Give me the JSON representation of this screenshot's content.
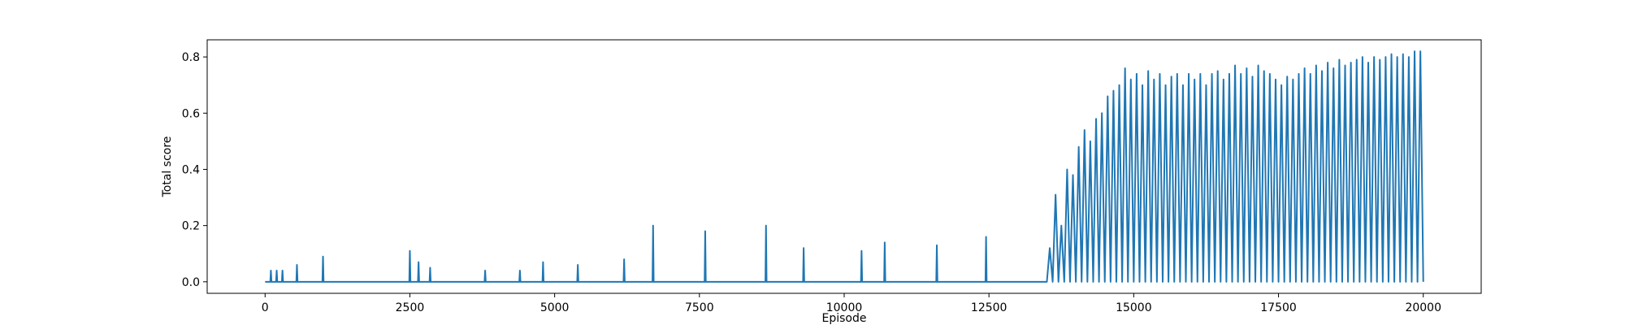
{
  "chart_data": {
    "type": "line",
    "xlabel": "Episode",
    "ylabel": "Total score",
    "xlim": [
      -1000,
      21000
    ],
    "ylim": [
      -0.041,
      0.861
    ],
    "xticks": [
      0,
      2500,
      5000,
      7500,
      10000,
      12500,
      15000,
      17500,
      20000
    ],
    "yticks": [
      {
        "value": 0,
        "label": "0.0"
      },
      0.2,
      0.4,
      0.6,
      0.8
    ],
    "grid": false,
    "series": [
      {
        "color": "#1f77b4",
        "x": [
          0,
          90,
          100,
          110,
          190,
          200,
          210,
          290,
          300,
          310,
          540,
          550,
          560,
          990,
          1000,
          1010,
          2490,
          2500,
          2510,
          2640,
          2650,
          2660,
          2840,
          2850,
          2860,
          3790,
          3800,
          3810,
          4390,
          4400,
          4410,
          4790,
          4800,
          4810,
          5390,
          5400,
          5410,
          6190,
          6200,
          6210,
          6690,
          6700,
          6710,
          7590,
          7600,
          7610,
          8640,
          8650,
          8660,
          9290,
          9300,
          9310,
          10290,
          10300,
          10310,
          10690,
          10700,
          10710,
          11590,
          11600,
          11610,
          12440,
          12450,
          12460,
          13400,
          13500,
          13550,
          13600,
          13650,
          13700,
          13750,
          13800,
          13850,
          13900,
          13950,
          14000,
          14050,
          14100,
          14150,
          14200,
          14250,
          14300,
          14350,
          14400,
          14450,
          14500,
          14550,
          14600,
          14650,
          14700,
          14750,
          14800,
          14850,
          14900,
          14950,
          15000,
          15050,
          15100,
          15150,
          15200,
          15250,
          15300,
          15350,
          15400,
          15450,
          15500,
          15550,
          15600,
          15650,
          15700,
          15750,
          15800,
          15850,
          15900,
          15950,
          16000,
          16050,
          16100,
          16150,
          16200,
          16250,
          16300,
          16350,
          16400,
          16450,
          16500,
          16550,
          16600,
          16650,
          16700,
          16750,
          16800,
          16850,
          16900,
          16950,
          17000,
          17050,
          17100,
          17150,
          17200,
          17250,
          17300,
          17350,
          17400,
          17450,
          17500,
          17550,
          17600,
          17650,
          17700,
          17750,
          17800,
          17850,
          17900,
          17950,
          18000,
          18050,
          18100,
          18150,
          18200,
          18250,
          18300,
          18350,
          18400,
          18450,
          18500,
          18550,
          18600,
          18650,
          18700,
          18750,
          18800,
          18850,
          18900,
          18950,
          19000,
          19050,
          19100,
          19150,
          19200,
          19250,
          19300,
          19350,
          19400,
          19450,
          19500,
          19550,
          19600,
          19650,
          19700,
          19750,
          19800,
          19850,
          19900,
          19950,
          20000
        ],
        "values": [
          0,
          0,
          0.04,
          0,
          0,
          0.04,
          0,
          0,
          0.04,
          0,
          0,
          0.06,
          0,
          0,
          0.09,
          0,
          0,
          0.11,
          0,
          0,
          0.07,
          0,
          0,
          0.05,
          0,
          0,
          0.04,
          0,
          0,
          0.04,
          0,
          0,
          0.07,
          0,
          0,
          0.06,
          0,
          0,
          0.08,
          0,
          0,
          0.2,
          0,
          0,
          0.18,
          0,
          0,
          0.2,
          0,
          0,
          0.12,
          0,
          0,
          0.11,
          0,
          0,
          0.14,
          0,
          0,
          0.13,
          0,
          0,
          0.16,
          0,
          0,
          0,
          0.12,
          0,
          0.31,
          0,
          0.2,
          0,
          0.4,
          0,
          0.38,
          0,
          0.48,
          0,
          0.54,
          0,
          0.5,
          0,
          0.58,
          0,
          0.6,
          0,
          0.66,
          0,
          0.68,
          0,
          0.7,
          0,
          0.76,
          0,
          0.72,
          0,
          0.74,
          0,
          0.7,
          0,
          0.75,
          0,
          0.72,
          0,
          0.74,
          0,
          0.7,
          0,
          0.73,
          0,
          0.74,
          0,
          0.7,
          0,
          0.74,
          0,
          0.72,
          0,
          0.74,
          0,
          0.7,
          0,
          0.74,
          0,
          0.75,
          0,
          0.72,
          0,
          0.74,
          0,
          0.77,
          0,
          0.74,
          0,
          0.76,
          0,
          0.73,
          0,
          0.77,
          0,
          0.75,
          0,
          0.74,
          0,
          0.72,
          0,
          0.7,
          0,
          0.73,
          0,
          0.72,
          0,
          0.74,
          0,
          0.76,
          0,
          0.74,
          0,
          0.77,
          0,
          0.75,
          0,
          0.78,
          0,
          0.76,
          0,
          0.79,
          0,
          0.77,
          0,
          0.78,
          0,
          0.79,
          0,
          0.8,
          0,
          0.78,
          0,
          0.8,
          0,
          0.79,
          0,
          0.8,
          0,
          0.81,
          0,
          0.8,
          0,
          0.81,
          0,
          0.8,
          0,
          0.82,
          0,
          0.82,
          0
        ]
      }
    ]
  }
}
